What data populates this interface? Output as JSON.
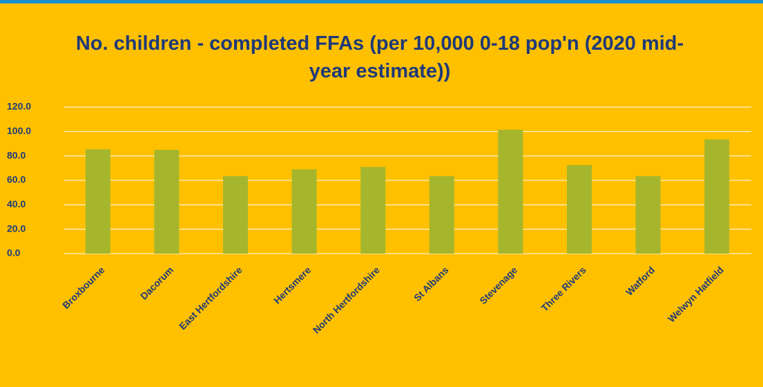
{
  "chart_data": {
    "type": "bar",
    "title": "No. children - completed FFAs (per 10,000 0-18 pop'n (2020 mid-year estimate))",
    "categories": [
      "Broxbourne",
      "Dacorum",
      "East Hertfordshire",
      "Hertsmere",
      "North Hertfordshire",
      "St Albans",
      "Stevenage",
      "Three Rivers",
      "Watford",
      "Welwyn Hatfield"
    ],
    "values": [
      85.5,
      85,
      63.5,
      69,
      71,
      63.5,
      101.5,
      72.5,
      63.5,
      93.5
    ],
    "color": "#a5b62c",
    "ylim": [
      0,
      120
    ],
    "yticks": [
      {
        "value": 0,
        "label": "0.0"
      },
      {
        "value": 20,
        "label": "20.0"
      },
      {
        "value": 40,
        "label": "40.0"
      },
      {
        "value": 60,
        "label": "60.0"
      },
      {
        "value": 80,
        "label": "80.0"
      },
      {
        "value": 100,
        "label": "100.0"
      },
      {
        "value": 120,
        "label": "120.0"
      }
    ],
    "grid": true
  }
}
